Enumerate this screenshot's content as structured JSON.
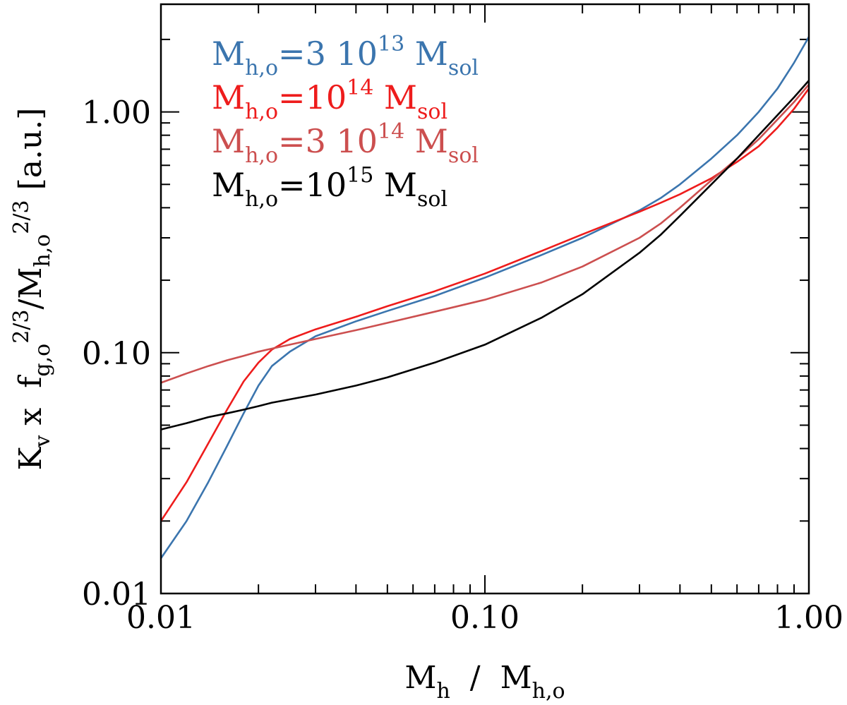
{
  "chart_data": {
    "type": "line",
    "title": "",
    "xscale": "log",
    "yscale": "log",
    "xlim": [
      0.01,
      1.0
    ],
    "ylim": [
      0.01,
      2.8
    ],
    "xticks": [
      {
        "value": 0.01,
        "label": "0.01"
      },
      {
        "value": 0.1,
        "label": "0.10"
      },
      {
        "value": 1.0,
        "label": "1.00"
      }
    ],
    "yticks": [
      {
        "value": 0.01,
        "label": "0.01"
      },
      {
        "value": 0.1,
        "label": "0.10"
      },
      {
        "value": 1.0,
        "label": "1.00"
      }
    ],
    "xlabel": {
      "main": "M",
      "sub": "h",
      "sep": "  /  ",
      "main2": "M",
      "sub2": "h,o"
    },
    "ylabel": {
      "p1": "K",
      "s1": "v",
      "p2": " x  f",
      "s2": "g,o",
      "e2": "2/3",
      "p3": "/M",
      "s3": "h,o",
      "e3": "2/3",
      "p4": " [a.u.]"
    },
    "legend_location": "top-left",
    "series": [
      {
        "name": "Mh,o=3 10^13 Msol",
        "color": "#3b75ae",
        "legend": {
          "lhs": "M",
          "lhs_sub": "h,o",
          "eq": "=3  10",
          "exp": "13",
          "unit": "  M",
          "unit_sub": "sol"
        },
        "x": [
          0.01,
          0.012,
          0.014,
          0.016,
          0.018,
          0.02,
          0.022,
          0.025,
          0.03,
          0.04,
          0.05,
          0.07,
          0.1,
          0.15,
          0.2,
          0.3,
          0.35,
          0.4,
          0.5,
          0.6,
          0.7,
          0.8,
          0.9,
          1.0
        ],
        "y": [
          0.014,
          0.02,
          0.029,
          0.041,
          0.056,
          0.073,
          0.088,
          0.101,
          0.117,
          0.135,
          0.149,
          0.172,
          0.205,
          0.255,
          0.3,
          0.39,
          0.44,
          0.5,
          0.64,
          0.8,
          1.0,
          1.25,
          1.6,
          2.05
        ]
      },
      {
        "name": "Mh,o=10^14 Msol",
        "color": "#ee1c1c",
        "legend": {
          "lhs": "M",
          "lhs_sub": "h,o",
          "eq": "=10",
          "exp": "14",
          "unit": "  M",
          "unit_sub": "sol"
        },
        "x": [
          0.01,
          0.012,
          0.014,
          0.016,
          0.018,
          0.02,
          0.022,
          0.025,
          0.03,
          0.04,
          0.05,
          0.07,
          0.1,
          0.15,
          0.2,
          0.3,
          0.35,
          0.4,
          0.5,
          0.6,
          0.7,
          0.8,
          0.9,
          1.0
        ],
        "y": [
          0.02,
          0.029,
          0.042,
          0.058,
          0.076,
          0.091,
          0.103,
          0.114,
          0.125,
          0.141,
          0.156,
          0.18,
          0.213,
          0.265,
          0.31,
          0.385,
          0.42,
          0.455,
          0.53,
          0.62,
          0.72,
          0.86,
          1.03,
          1.25
        ]
      },
      {
        "name": "Mh,o=3 10^14 Msol",
        "color": "#cc4f4f",
        "legend": {
          "lhs": "M",
          "lhs_sub": "h,o",
          "eq": "=3  10",
          "exp": "14",
          "unit": "  M",
          "unit_sub": "sol"
        },
        "x": [
          0.01,
          0.012,
          0.014,
          0.016,
          0.018,
          0.02,
          0.022,
          0.025,
          0.03,
          0.04,
          0.05,
          0.07,
          0.1,
          0.15,
          0.2,
          0.3,
          0.35,
          0.4,
          0.5,
          0.6,
          0.7,
          0.8,
          0.9,
          1.0
        ],
        "y": [
          0.075,
          0.082,
          0.088,
          0.093,
          0.097,
          0.101,
          0.104,
          0.108,
          0.114,
          0.124,
          0.133,
          0.148,
          0.166,
          0.196,
          0.228,
          0.3,
          0.345,
          0.4,
          0.52,
          0.64,
          0.77,
          0.93,
          1.1,
          1.3
        ]
      },
      {
        "name": "Mh,o=10^15 Msol",
        "color": "#000000",
        "legend": {
          "lhs": "M",
          "lhs_sub": "h,o",
          "eq": "=10",
          "exp": "15",
          "unit": "  M",
          "unit_sub": "sol"
        },
        "x": [
          0.01,
          0.012,
          0.014,
          0.016,
          0.018,
          0.02,
          0.022,
          0.025,
          0.03,
          0.04,
          0.05,
          0.07,
          0.1,
          0.15,
          0.2,
          0.3,
          0.35,
          0.4,
          0.5,
          0.6,
          0.7,
          0.8,
          0.9,
          1.0
        ],
        "y": [
          0.048,
          0.051,
          0.054,
          0.056,
          0.058,
          0.06,
          0.062,
          0.064,
          0.067,
          0.073,
          0.079,
          0.091,
          0.108,
          0.14,
          0.175,
          0.26,
          0.31,
          0.37,
          0.5,
          0.64,
          0.8,
          0.97,
          1.15,
          1.35
        ]
      }
    ]
  }
}
